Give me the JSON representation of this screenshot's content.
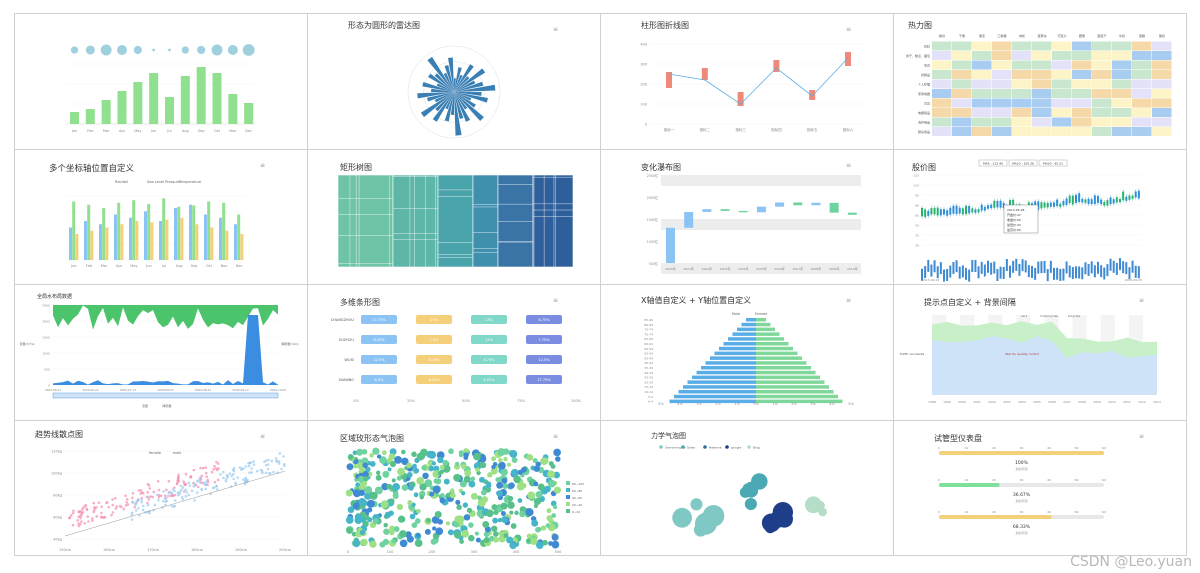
{
  "titles": {
    "c2": "形态为圆形的雷达图",
    "c3": "柱形图折线图",
    "c4": "热力图",
    "c5": "多个坐标轴位置自定义",
    "c6": "矩形树图",
    "c7": "变化瀑布图",
    "c8": "股价图",
    "c9": "全局水布局数据",
    "c10": "多维条形图",
    "c11": "X轴值自定义 + Y轴位置自定义",
    "c12": "提示点自定义 + 背景间隔",
    "c13": "趋势线散点图",
    "c14": "区域玫形态气泡图",
    "c15": "力学气泡图",
    "c16": "试管型仪表盘"
  },
  "watermark": "CSDN @Leo.yuan",
  "colors": {
    "green": "#91e08f",
    "blue": "#3a7fb4",
    "teal": "#5ab7b0",
    "orange": "#f5cf7a",
    "purple": "#7b8de0",
    "red": "#ef8979",
    "lightblue": "#8bc4f4"
  },
  "chart_data": [
    {
      "id": "c1",
      "type": "bar",
      "categories": [
        "Jan",
        "Feb",
        "Mar",
        "Apr",
        "May",
        "Jun",
        "Jul",
        "Aug",
        "Sep",
        "Oct",
        "Nov",
        "Dec"
      ],
      "values": [
        20,
        25,
        40,
        55,
        70,
        85,
        45,
        80,
        95,
        85,
        50,
        35
      ],
      "bubbles": [
        8,
        10,
        12,
        11,
        9,
        3,
        3,
        8,
        9,
        12,
        11,
        13
      ]
    },
    {
      "id": "c2",
      "type": "bar",
      "subtype": "polar-radial",
      "values": [
        30,
        55,
        40,
        70,
        45,
        80,
        50,
        65,
        90,
        60,
        75,
        40,
        55,
        85,
        45,
        70,
        60,
        95,
        50,
        65,
        40,
        75,
        55,
        85,
        45,
        60,
        80,
        50,
        70,
        40,
        65,
        55,
        90,
        45,
        60,
        75
      ]
    },
    {
      "id": "c3",
      "type": "line",
      "categories": [
        "指标一",
        "指标二",
        "指标三",
        "指标四",
        "指标五",
        "指标六"
      ],
      "line": [
        250,
        220,
        100,
        280,
        140,
        330
      ],
      "bars": [
        [
          180,
          260
        ],
        [
          220,
          280
        ],
        [
          90,
          160
        ],
        [
          260,
          320
        ],
        [
          120,
          170
        ],
        [
          290,
          360
        ]
      ],
      "ylim": [
        0,
        400
      ],
      "yticks": [
        "400",
        "300",
        "200",
        "100",
        "0"
      ]
    },
    {
      "id": "c4",
      "type": "heatmap",
      "rows": [
        "饮料",
        "饼干、糕点、面包",
        "零食",
        "奶制品",
        "个人护理",
        "家用电器",
        "文具",
        "电器用品",
        "洗护用品",
        "厨房用品"
      ],
      "cols": [
        "餐具",
        "干果",
        "果冻",
        "口香糖",
        "肉松",
        "蛋黄派",
        "巧克力",
        "腰果",
        "面包干",
        "牛奶",
        "蛋糕",
        "酸奶"
      ]
    },
    {
      "id": "c5",
      "type": "bar",
      "categories": [
        "Jan",
        "Feb",
        "Mar",
        "Apr",
        "May",
        "Jun",
        "Jul",
        "Aug",
        "Sep",
        "Oct",
        "Nov",
        "Dec"
      ],
      "series": [
        {
          "name": "Rainfall",
          "values": [
            50,
            60,
            55,
            70,
            65,
            75,
            60,
            80,
            85,
            70,
            65,
            55
          ]
        },
        {
          "name": "Sea-Level Pressure",
          "values": [
            90,
            85,
            80,
            88,
            92,
            86,
            95,
            82,
            84,
            90,
            88,
            70
          ]
        },
        {
          "name": "Temperature",
          "values": [
            40,
            45,
            50,
            55,
            60,
            58,
            62,
            65,
            55,
            50,
            45,
            40
          ]
        }
      ]
    },
    {
      "id": "c6",
      "type": "treemap"
    },
    {
      "id": "c7",
      "type": "bar",
      "subtype": "waterfall",
      "categories": [
        "2000年",
        "2001年",
        "2002年",
        "2003年",
        "2004年",
        "2005年",
        "2006年",
        "2007年",
        "2008年",
        "2009年",
        "2010年"
      ],
      "values": [
        100,
        45,
        8,
        -5,
        -4,
        16,
        12,
        -8,
        7,
        -28,
        -6
      ],
      "yticks": [
        "2500亿",
        "2000亿",
        "1500亿",
        "1000亿",
        "500亿"
      ],
      "ylim": [
        0,
        2500
      ]
    },
    {
      "id": "c8",
      "type": "bar",
      "subtype": "candlestick",
      "xticks": [
        "2013-02-01",
        "2013-02-13",
        "2013-02-25",
        "2013-03-09",
        "2013-03-21",
        "2013-04-02",
        "2013-04-14",
        "2013-04-26",
        "2013-05-08",
        "2013-05-20",
        "2013-06-01",
        "2013-06-13",
        "2013-06-25"
      ],
      "tags": [
        "MA5 : 112.40",
        "MA10 : 105.38",
        "MA20 : 95.21"
      ],
      "yleft": [
        "125",
        "110",
        "95",
        "80",
        "65",
        "50",
        "35",
        "20"
      ],
      "tooltip": [
        "2013-05-28",
        "开盘价:47",
        "收盘价:65",
        "最低价:43",
        "最高价:69"
      ]
    },
    {
      "id": "c9",
      "type": "area",
      "xticks": [
        "2009-06-01",
        "2009-06-22",
        "2009-07-13",
        "2009-08-03",
        "2009-08-24",
        "2009-09-14",
        "2009-10-05"
      ],
      "yticks": [
        "2500",
        "2000",
        "1500",
        "1000",
        "500",
        "0"
      ],
      "legend": [
        "流量",
        "降雨量"
      ],
      "ylabel": "流量(m³/s)",
      "ylabel_r": "降雨量(mm)"
    },
    {
      "id": "c10",
      "type": "bar",
      "subtype": "stacked-horizontal",
      "categories": [
        "CHANGZHOU",
        "SUZHOU",
        "WUXI",
        "NANJING"
      ],
      "series": [
        {
          "name": "a",
          "values": [
            "17.75%",
            "8.25%",
            "12.5%",
            "8.5%"
          ]
        },
        {
          "name": "b",
          "values": [
            "15%",
            "7.5%",
            "8.75%",
            "8.25%"
          ]
        },
        {
          "name": "c",
          "values": [
            "13%",
            "11%",
            "8.75%",
            "6.25%"
          ]
        },
        {
          "name": "d",
          "values": [
            "8.75%",
            "7.75%",
            "12.5%",
            "17.75%"
          ]
        }
      ],
      "xticks": [
        "0%",
        "25%",
        "50%",
        "75%",
        "100%"
      ]
    },
    {
      "id": "c11",
      "type": "bar",
      "subtype": "population-pyramid",
      "legend": [
        "Male",
        "Female"
      ],
      "yticks": [
        "85-90",
        "80-84",
        "75-79",
        "70-74",
        "65-69",
        "60-64",
        "55-59",
        "50-54",
        "45-49",
        "40-44",
        "35-39",
        "30-34",
        "25-29",
        "20-24",
        "15-19",
        "10-14",
        "5-9",
        "0-4"
      ],
      "xticks": [
        "5%",
        "4%",
        "3%",
        "2%",
        "1%",
        "0%",
        "1%",
        "2%",
        "3%",
        "4%",
        "5%"
      ]
    },
    {
      "id": "c12",
      "type": "area",
      "xticks": [
        "1998",
        "1999",
        "2000",
        "2001",
        "2002",
        "2003",
        "2004",
        "2005",
        "2006",
        "2007",
        "2008",
        "2009",
        "2010",
        "2011",
        "2012",
        "2013"
      ],
      "legend": [
        "cars",
        "motorcycles",
        "bicycles"
      ],
      "ylabel": "Traffic Accidents",
      "annotation": "Year for quality control"
    },
    {
      "id": "c13",
      "type": "scatter",
      "legend": [
        "female",
        "male"
      ],
      "xticks": [
        "150cm",
        "160cm",
        "170cm",
        "180cm",
        "190cm",
        "200cm"
      ],
      "yticks": [
        "120kg",
        "100kg",
        "80kg",
        "60kg",
        "40kg"
      ]
    },
    {
      "id": "c14",
      "type": "scatter",
      "subtype": "bubble",
      "legend": [
        "80~100",
        "60~80",
        "40~60",
        "20~40",
        "0~20"
      ],
      "xticks": [
        "0",
        "100",
        "200",
        "300",
        "400",
        "500"
      ],
      "yticks": [
        "20",
        "15",
        "10",
        "5",
        "0"
      ]
    },
    {
      "id": "c15",
      "type": "scatter",
      "subtype": "force-bubble",
      "legend": [
        "Searchengine",
        "Sales",
        "Network",
        "google",
        "Bing"
      ],
      "node_label": "Baidu"
    },
    {
      "id": "c16",
      "type": "bar",
      "subtype": "tube-gauge",
      "xticks": [
        "0",
        "10",
        "20",
        "30",
        "40",
        "50",
        "60"
      ],
      "values": [
        "100%",
        "36.67%",
        "68.33%"
      ],
      "label": "指标标题"
    }
  ]
}
